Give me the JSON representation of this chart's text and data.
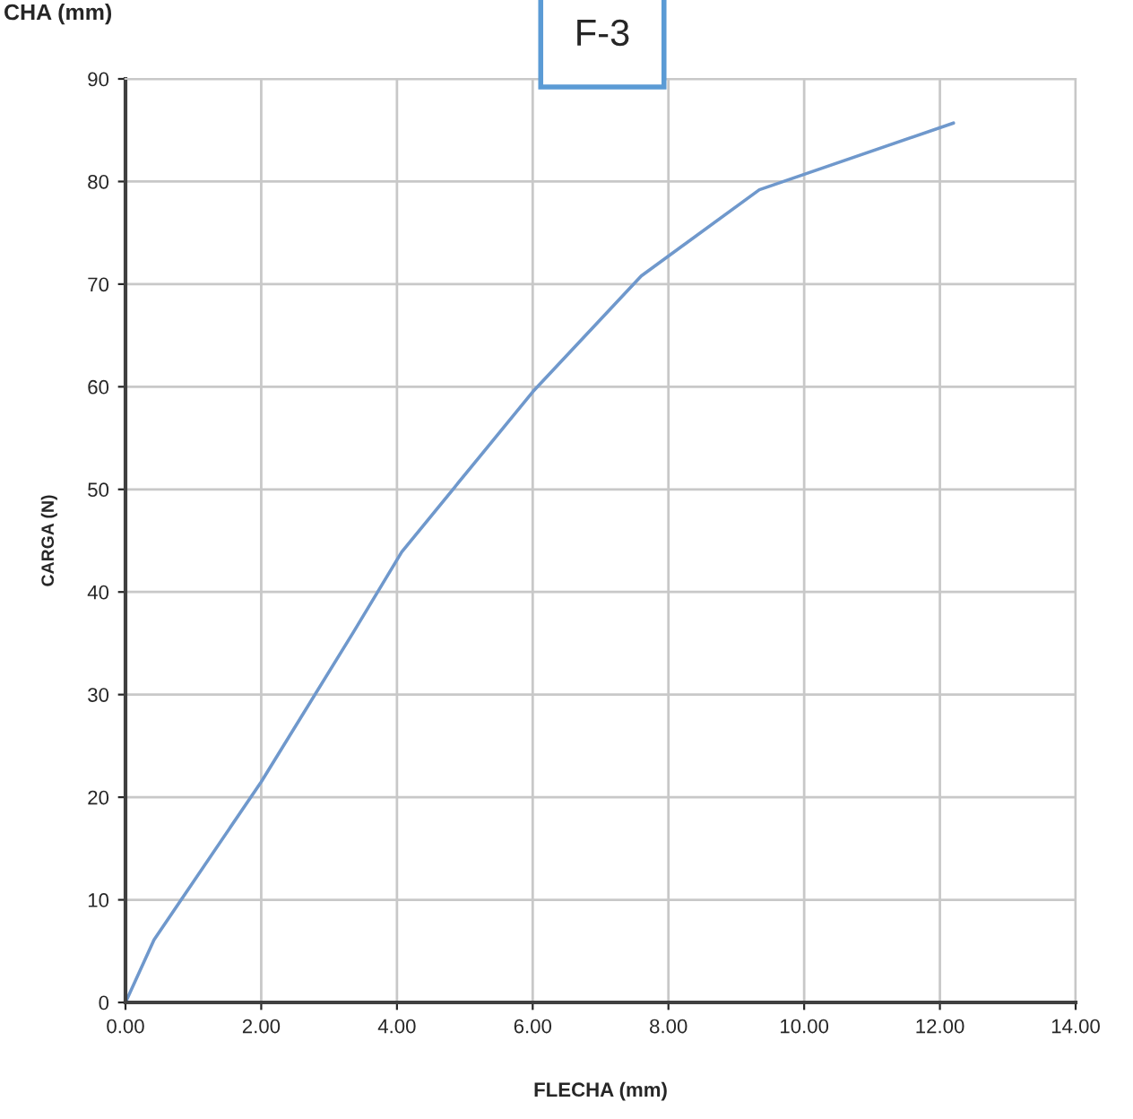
{
  "chart_data": {
    "type": "line",
    "xlabel": "FLECHA (mm)",
    "ylabel": "CARGA (N)",
    "annotations": [
      "CHA (mm)",
      "F-3"
    ],
    "x": [
      0,
      0.42,
      2.0,
      3.36,
      4.07,
      6.0,
      7.6,
      9.34,
      12.2
    ],
    "series": [
      {
        "color": "#6f98cc",
        "values": [
          0,
          6.1,
          21.5,
          36.1,
          43.9,
          59.5,
          70.8,
          79.2,
          85.7
        ]
      }
    ],
    "xlim": [
      0,
      14
    ],
    "xticks": [
      {
        "value": 0,
        "label": "0.00"
      },
      {
        "value": 2,
        "label": "2.00"
      },
      {
        "value": 4,
        "label": "4.00"
      },
      {
        "value": 6,
        "label": "6.00"
      },
      {
        "value": 8,
        "label": "8.00"
      },
      {
        "value": 10,
        "label": "10.00"
      },
      {
        "value": 12,
        "label": "12.00"
      },
      {
        "value": 14,
        "label": "14.00"
      }
    ],
    "ylim": [
      0,
      90
    ],
    "yticks": [
      0,
      10,
      20,
      30,
      40,
      50,
      60,
      70,
      80,
      90
    ],
    "grid": true,
    "legend": false,
    "marker": "none",
    "line_style": "solid"
  }
}
